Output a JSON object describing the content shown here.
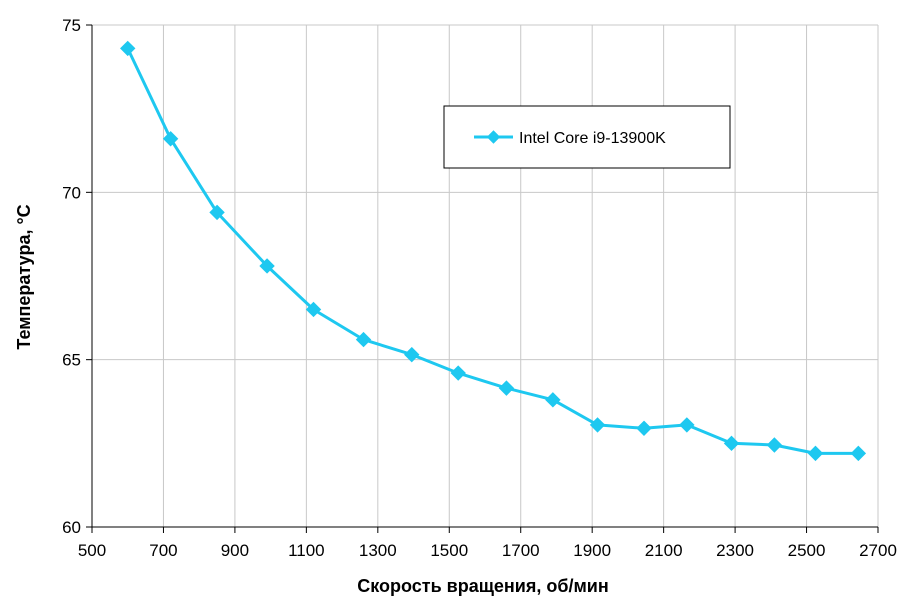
{
  "chart_data": {
    "type": "line",
    "title": "",
    "xlabel": "Скорость вращения, об/мин",
    "ylabel": "Температура, °C",
    "xlim": [
      500,
      2700
    ],
    "ylim": [
      60,
      75
    ],
    "xticks": [
      500,
      700,
      900,
      1100,
      1300,
      1500,
      1700,
      1900,
      2100,
      2300,
      2500,
      2700
    ],
    "yticks": [
      60,
      65,
      70,
      75
    ],
    "grid": true,
    "legend_position": "top-right",
    "colors": {
      "series": "#1ec8f0",
      "grid": "#c8c8c8",
      "axis": "#000000"
    },
    "series": [
      {
        "name": "Intel Core i9-13900K",
        "marker": "diamond",
        "x": [
          600,
          720,
          850,
          990,
          1120,
          1260,
          1395,
          1525,
          1660,
          1790,
          1915,
          2045,
          2165,
          2290,
          2410,
          2525,
          2645
        ],
        "y": [
          74.3,
          71.6,
          69.4,
          67.8,
          66.5,
          65.6,
          65.15,
          64.6,
          64.15,
          63.8,
          63.05,
          62.95,
          63.05,
          62.5,
          62.45,
          62.2,
          62.2
        ]
      }
    ]
  }
}
